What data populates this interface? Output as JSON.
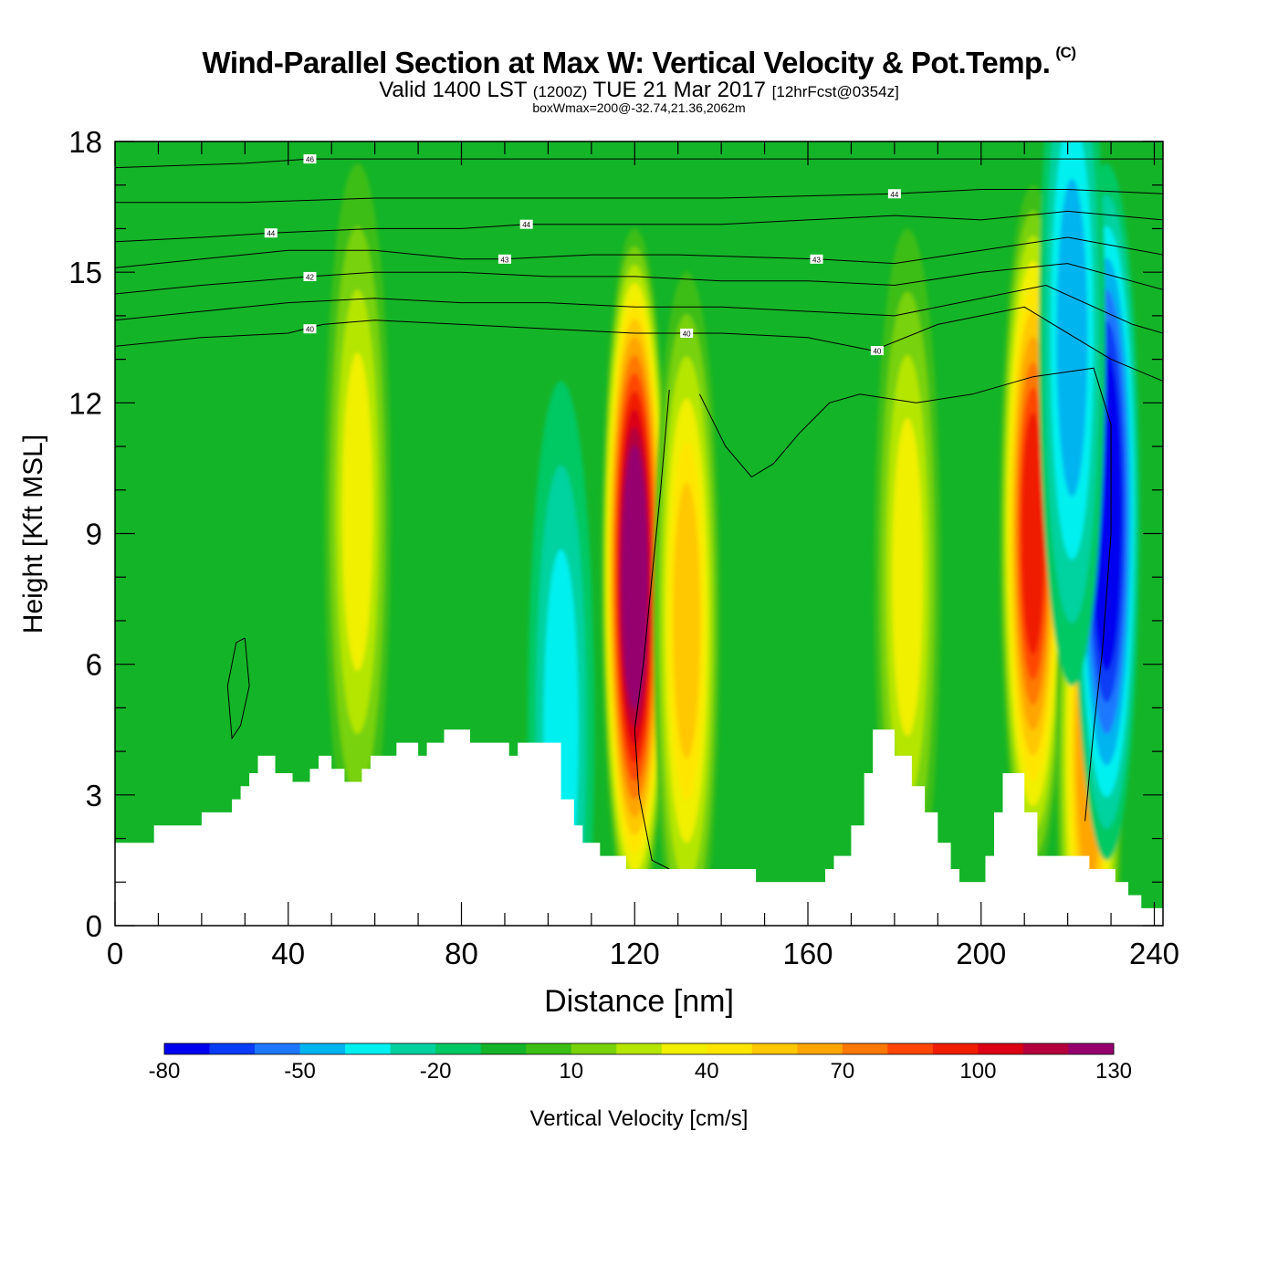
{
  "header": {
    "title": "Wind-Parallel Section at Max W: Vertical Velocity & Pot.Temp.",
    "copyright": "(C)",
    "valid_prefix": "Valid 1400 LST",
    "valid_zulu": "(1200Z)",
    "valid_date": "TUE 21 Mar 2017",
    "forecast": "[12hrFcst@0354z]",
    "box_info": "boxWmax=200@-32.74,21.36,2062m"
  },
  "colors": {
    "terrain": "#ffffff",
    "contour": "#000000",
    "palette": [
      "#0000f0",
      "#0a3cf5",
      "#1e78ff",
      "#00b4f0",
      "#00f0f0",
      "#00d2a0",
      "#00c864",
      "#14b428",
      "#3cbe14",
      "#78d20a",
      "#b4e600",
      "#f0f000",
      "#ffe600",
      "#ffc800",
      "#ffa500",
      "#ff7800",
      "#ff4600",
      "#f01e00",
      "#dc0014",
      "#b4003c",
      "#96006e"
    ]
  },
  "chart_data": {
    "type": "heatmap",
    "title": "Wind-Parallel Section at Max W: Vertical Velocity & Pot.Temp.",
    "xlabel": "Distance [nm]",
    "ylabel": "Height [Kft MSL]",
    "xlim": [
      0,
      242
    ],
    "ylim": [
      0,
      18
    ],
    "xticks": [
      "0",
      "40",
      "80",
      "120",
      "160",
      "200",
      "240"
    ],
    "yticks": [
      "0",
      "3",
      "6",
      "9",
      "12",
      "15",
      "18"
    ],
    "xtick_values": [
      0,
      40,
      80,
      120,
      160,
      200,
      240
    ],
    "ytick_values": [
      0,
      3,
      6,
      9,
      12,
      15,
      18
    ],
    "colorbar": {
      "label": "Vertical Velocity [cm/s]",
      "levels": [
        -80,
        -70,
        -60,
        -50,
        -40,
        -30,
        -20,
        -10,
        0,
        10,
        20,
        30,
        40,
        50,
        60,
        70,
        80,
        90,
        100,
        110,
        120,
        130,
        140
      ],
      "tick_labels": [
        "-80",
        "-50",
        "-20",
        "10",
        "40",
        "70",
        "100",
        "130"
      ],
      "tick_values": [
        -80,
        -50,
        -20,
        10,
        40,
        70,
        100,
        130
      ]
    },
    "terrain_kft": [
      [
        0,
        1.9
      ],
      [
        8,
        1.9
      ],
      [
        9,
        2.3
      ],
      [
        19,
        2.3
      ],
      [
        20,
        2.6
      ],
      [
        26,
        2.6
      ],
      [
        27,
        2.9
      ],
      [
        29,
        3.2
      ],
      [
        31,
        3.5
      ],
      [
        33,
        3.9
      ],
      [
        36,
        3.9
      ],
      [
        37,
        3.5
      ],
      [
        41,
        3.3
      ],
      [
        44,
        3.3
      ],
      [
        45,
        3.6
      ],
      [
        47,
        3.9
      ],
      [
        49,
        3.9
      ],
      [
        50,
        3.6
      ],
      [
        53,
        3.3
      ],
      [
        56,
        3.3
      ],
      [
        57,
        3.6
      ],
      [
        59,
        3.9
      ],
      [
        63,
        3.9
      ],
      [
        65,
        4.2
      ],
      [
        68,
        4.2
      ],
      [
        70,
        3.9
      ],
      [
        72,
        4.2
      ],
      [
        76,
        4.5
      ],
      [
        80,
        4.5
      ],
      [
        82,
        4.2
      ],
      [
        89,
        4.2
      ],
      [
        91,
        3.9
      ],
      [
        93,
        4.2
      ],
      [
        102,
        4.2
      ],
      [
        103,
        2.9
      ],
      [
        106,
        2.3
      ],
      [
        108,
        1.9
      ],
      [
        112,
        1.6
      ],
      [
        118,
        1.3
      ],
      [
        127,
        1.3
      ],
      [
        140,
        1.3
      ],
      [
        148,
        1.0
      ],
      [
        162,
        1.0
      ],
      [
        164,
        1.3
      ],
      [
        166,
        1.6
      ],
      [
        170,
        2.3
      ],
      [
        173,
        3.5
      ],
      [
        175,
        4.5
      ],
      [
        178,
        4.5
      ],
      [
        180,
        3.9
      ],
      [
        184,
        3.2
      ],
      [
        187,
        2.6
      ],
      [
        190,
        1.9
      ],
      [
        193,
        1.3
      ],
      [
        195,
        1.0
      ],
      [
        199,
        1.0
      ],
      [
        201,
        1.6
      ],
      [
        203,
        2.6
      ],
      [
        205,
        3.5
      ],
      [
        209,
        3.5
      ],
      [
        210,
        2.6
      ],
      [
        213,
        1.6
      ],
      [
        224,
        1.6
      ],
      [
        225,
        1.3
      ],
      [
        229,
        1.3
      ],
      [
        231,
        1.0
      ],
      [
        234,
        0.7
      ],
      [
        237,
        0.4
      ],
      [
        241,
        0.4
      ],
      [
        242,
        1.0
      ]
    ],
    "updrafts": [
      {
        "x": 56,
        "z": 9.5,
        "w": 42
      },
      {
        "x": 120,
        "z": 8.0,
        "w": 140
      },
      {
        "x": 132,
        "z": 7.0,
        "w": 65
      },
      {
        "x": 183,
        "z": 8.0,
        "w": 40
      },
      {
        "x": 212,
        "z": 9.0,
        "w": 105
      },
      {
        "x": 225,
        "z": 4.0,
        "w": 75
      }
    ],
    "downdrafts": [
      {
        "x": 229,
        "z": 9.5,
        "w": -75
      },
      {
        "x": 221,
        "z": 13.5,
        "w": -30
      },
      {
        "x": 103,
        "z": 4.5,
        "w": -25
      }
    ],
    "theta_contours": [
      {
        "label": "40",
        "points": [
          [
            0,
            13.3
          ],
          [
            20,
            13.5
          ],
          [
            40,
            13.6
          ],
          [
            48,
            13.8
          ],
          [
            60,
            13.9
          ],
          [
            80,
            13.8
          ],
          [
            100,
            13.7
          ],
          [
            120,
            13.6
          ],
          [
            140,
            13.6
          ],
          [
            160,
            13.5
          ],
          [
            175,
            13.2
          ],
          [
            190,
            13.8
          ],
          [
            210,
            14.2
          ],
          [
            230,
            13.0
          ],
          [
            242,
            12.5
          ]
        ]
      },
      {
        "label": "41",
        "points": [
          [
            0,
            13.9
          ],
          [
            20,
            14.1
          ],
          [
            40,
            14.3
          ],
          [
            60,
            14.4
          ],
          [
            80,
            14.3
          ],
          [
            100,
            14.3
          ],
          [
            120,
            14.2
          ],
          [
            140,
            14.2
          ],
          [
            160,
            14.1
          ],
          [
            180,
            14.0
          ],
          [
            200,
            14.4
          ],
          [
            215,
            14.7
          ],
          [
            235,
            13.8
          ],
          [
            242,
            13.6
          ]
        ]
      },
      {
        "label": "42",
        "points": [
          [
            0,
            14.5
          ],
          [
            20,
            14.7
          ],
          [
            45,
            14.9
          ],
          [
            60,
            15.0
          ],
          [
            80,
            15.0
          ],
          [
            100,
            14.9
          ],
          [
            120,
            14.9
          ],
          [
            140,
            14.8
          ],
          [
            160,
            14.8
          ],
          [
            180,
            14.7
          ],
          [
            200,
            15.0
          ],
          [
            220,
            15.2
          ],
          [
            242,
            14.6
          ]
        ]
      },
      {
        "label": "43",
        "points": [
          [
            0,
            15.1
          ],
          [
            20,
            15.3
          ],
          [
            40,
            15.5
          ],
          [
            60,
            15.5
          ],
          [
            80,
            15.3
          ],
          [
            90,
            15.3
          ],
          [
            110,
            15.4
          ],
          [
            130,
            15.4
          ],
          [
            162,
            15.3
          ],
          [
            180,
            15.2
          ],
          [
            200,
            15.5
          ],
          [
            220,
            15.8
          ],
          [
            242,
            15.4
          ]
        ]
      },
      {
        "label": "44",
        "points": [
          [
            0,
            15.7
          ],
          [
            20,
            15.8
          ],
          [
            36,
            15.9
          ],
          [
            60,
            16.0
          ],
          [
            80,
            16.0
          ],
          [
            95,
            16.1
          ],
          [
            115,
            16.1
          ],
          [
            140,
            16.1
          ],
          [
            160,
            16.2
          ],
          [
            180,
            16.3
          ],
          [
            200,
            16.2
          ],
          [
            220,
            16.4
          ],
          [
            242,
            16.2
          ]
        ]
      },
      {
        "label": "45",
        "points": [
          [
            0,
            16.6
          ],
          [
            30,
            16.6
          ],
          [
            60,
            16.7
          ],
          [
            100,
            16.7
          ],
          [
            140,
            16.7
          ],
          [
            180,
            16.8
          ],
          [
            200,
            16.9
          ],
          [
            220,
            16.9
          ],
          [
            242,
            16.8
          ]
        ]
      },
      {
        "label": "46",
        "points": [
          [
            0,
            17.4
          ],
          [
            30,
            17.5
          ],
          [
            45,
            17.6
          ],
          [
            80,
            17.6
          ],
          [
            120,
            17.6
          ],
          [
            160,
            17.6
          ],
          [
            200,
            17.6
          ],
          [
            242,
            17.6
          ]
        ]
      }
    ],
    "w_contour_zero": [
      {
        "points": [
          [
            135,
            12.2
          ],
          [
            141,
            11.0
          ],
          [
            147,
            10.3
          ],
          [
            152,
            10.6
          ],
          [
            158,
            11.3
          ],
          [
            165,
            12.0
          ],
          [
            172,
            12.2
          ],
          [
            185,
            12.0
          ],
          [
            198,
            12.2
          ],
          [
            212,
            12.6
          ],
          [
            226,
            12.8
          ],
          [
            230,
            11.5
          ],
          [
            230,
            9.0
          ],
          [
            228,
            6.3
          ],
          [
            226,
            4.5
          ],
          [
            224,
            2.4
          ]
        ]
      },
      {
        "points": [
          [
            128,
            12.3
          ],
          [
            126,
            10.0
          ],
          [
            124,
            8.0
          ],
          [
            122,
            6.0
          ],
          [
            120,
            4.5
          ],
          [
            121,
            3.0
          ],
          [
            124,
            1.5
          ],
          [
            128,
            1.3
          ]
        ]
      },
      {
        "points": [
          [
            30,
            6.6
          ],
          [
            31,
            5.5
          ],
          [
            29,
            4.6
          ],
          [
            27,
            4.3
          ],
          [
            26,
            5.5
          ],
          [
            28,
            6.5
          ],
          [
            30,
            6.6
          ]
        ]
      }
    ]
  }
}
